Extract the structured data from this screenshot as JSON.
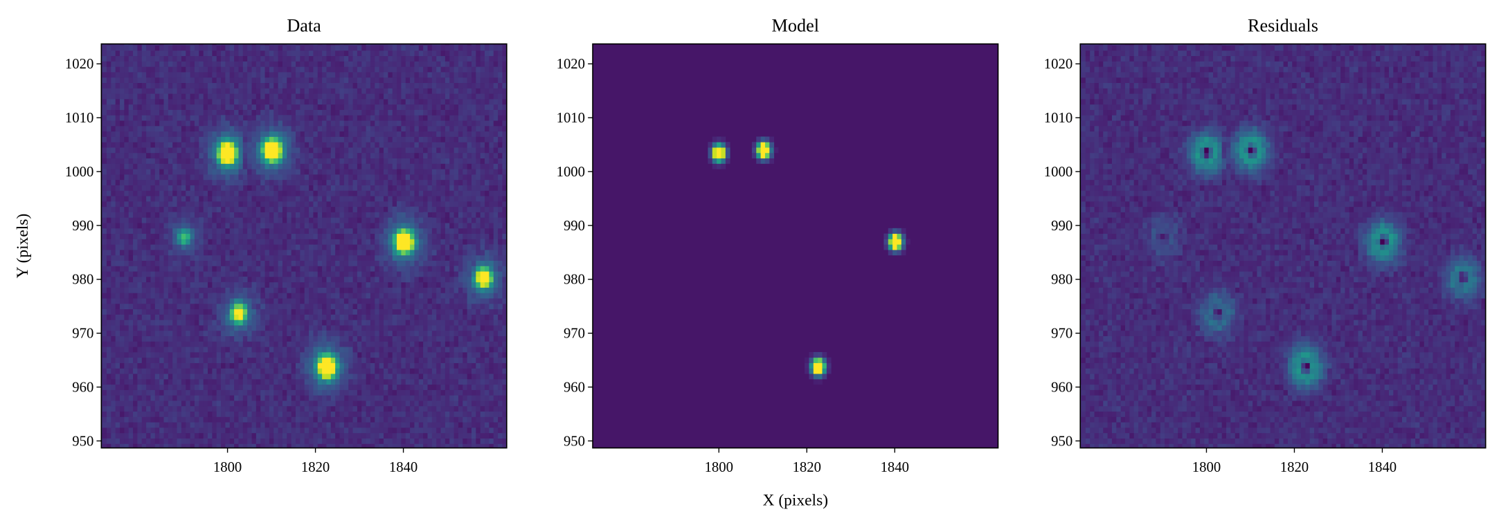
{
  "chart_data": [
    {
      "type": "image",
      "title": "Data",
      "x": [
        1800,
        1810.2,
        1840.2,
        1822.6,
        1790.2,
        1802.6,
        1858.3
      ],
      "y": [
        1003.5,
        1004,
        987,
        963.8,
        987.9,
        973.7,
        980.3
      ],
      "values": [
        1,
        1,
        1,
        1,
        0.3,
        0.6,
        0.7
      ],
      "xlim": [
        1771.3,
        1863.5
      ],
      "ylim": [
        948.7,
        1023.7
      ],
      "xticks": [
        1800,
        1820,
        1840
      ],
      "yticks": [
        950,
        960,
        970,
        980,
        990,
        1000,
        1010,
        1020
      ],
      "ylabel": "Y (pixels)"
    },
    {
      "type": "model-image",
      "title": "Model",
      "x": [
        1800,
        1810.2,
        1840.2,
        1822.6
      ],
      "y": [
        1003.5,
        1004,
        987,
        963.8
      ],
      "values": [
        1,
        1,
        1,
        1
      ],
      "xlim": [
        1771.3,
        1863.5
      ],
      "ylim": [
        948.7,
        1023.7
      ],
      "xticks": [
        1800,
        1820,
        1840
      ],
      "yticks": [
        950,
        960,
        970,
        980,
        990,
        1000,
        1010,
        1020
      ],
      "xlabel": "X (pixels)"
    },
    {
      "type": "residual-image",
      "title": "Residuals",
      "x": [
        1800,
        1810.2,
        1840.2,
        1822.6,
        1790.2,
        1802.6,
        1858.3
      ],
      "y": [
        1003.5,
        1004,
        987,
        963.8,
        987.9,
        973.7,
        980.3
      ],
      "values": [
        1,
        1,
        1,
        1,
        0.3,
        0.6,
        0.7
      ],
      "xlim": [
        1771.3,
        1863.5
      ],
      "ylim": [
        948.7,
        1023.7
      ],
      "xticks": [
        1800,
        1820,
        1840
      ],
      "yticks": [
        950,
        960,
        970,
        980,
        990,
        1000,
        1010,
        1020
      ]
    }
  ]
}
